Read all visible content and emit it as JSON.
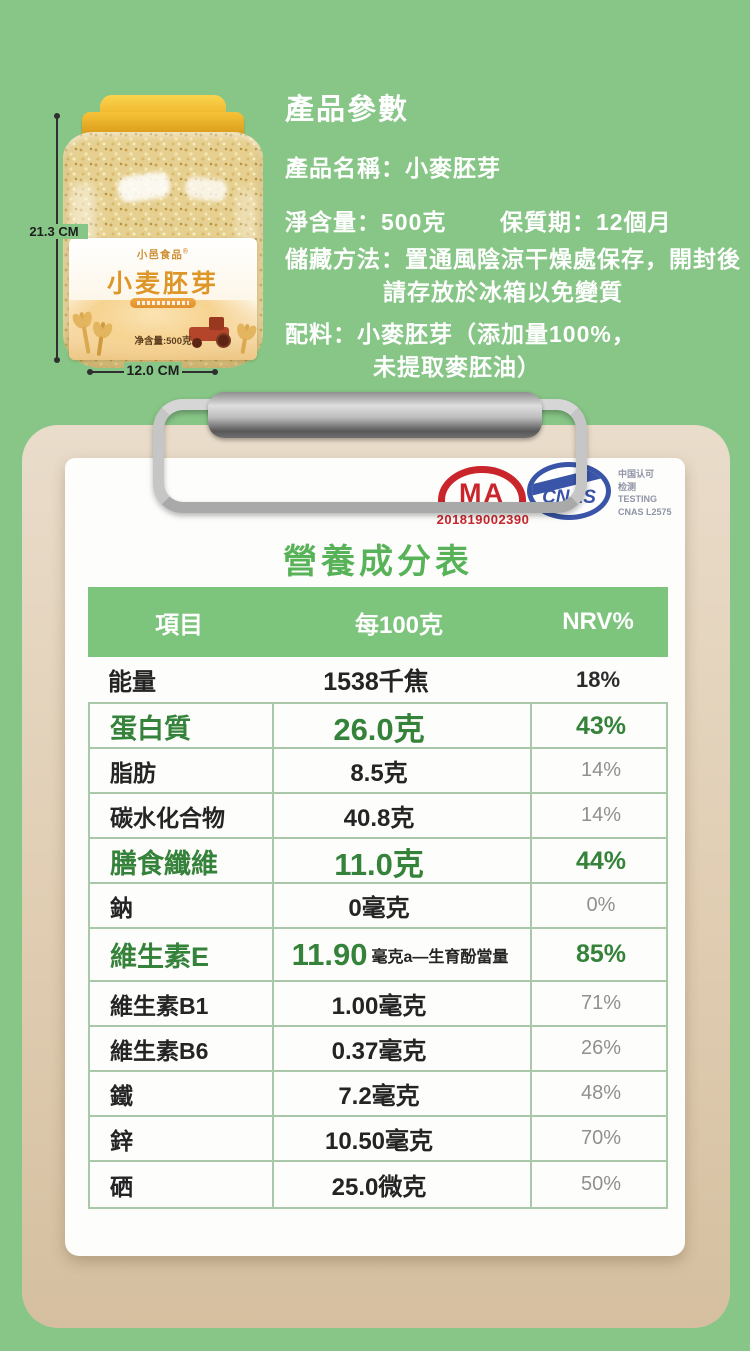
{
  "colors": {
    "background": "#87c687",
    "header_green": "#7dc47d",
    "title_green": "#58b358",
    "highlight_green": "#35823a",
    "cma_red": "#c9252b",
    "cnas_blue": "#3a55a8",
    "clipboard_tan": "#e0cdb2",
    "paper": "#fdfdfb",
    "gold": "#dd9628"
  },
  "params": {
    "title": "產品參數",
    "name": "產品名稱：小麥胚芽",
    "net": "淨含量：500克",
    "shelf": "保質期：12個月",
    "storage1": "儲藏方法：置通風陰涼干燥處保存，開封後",
    "storage2": "請存放於冰箱以免變質",
    "ingredients1": "配料：小麥胚芽（添加量100%，",
    "ingredients2": "未提取麥胚油）"
  },
  "jar": {
    "brand": "小邑食品",
    "brand_reg": "®",
    "name": "小麦胚芽",
    "net_weight": "净含量:500克",
    "height_label": "21.3 CM",
    "width_label": "12.0 CM"
  },
  "certs": {
    "cma_label": "MA",
    "cma_number": "201819002390",
    "cnas_label": "CNAS",
    "cnas_lines": [
      "中国认可",
      "检测",
      "TESTING",
      "CNAS L2575"
    ]
  },
  "nutrition": {
    "title": "營養成分表",
    "headers": [
      "項目",
      "每100克",
      "NRV%"
    ],
    "rows": [
      {
        "name": "能量",
        "value": "1538千焦",
        "nrv": "18%"
      },
      {
        "name": "蛋白質",
        "value": "26.0克",
        "nrv": "43%"
      },
      {
        "name": "脂肪",
        "value": "8.5克",
        "nrv": "14%"
      },
      {
        "name": "碳水化合物",
        "value": "40.8克",
        "nrv": "14%"
      },
      {
        "name": "膳食纖維",
        "value": "11.0克",
        "nrv": "44%"
      },
      {
        "name": "鈉",
        "value": "0毫克",
        "nrv": "0%"
      },
      {
        "name": "維生素E",
        "value": "11.90",
        "unit": "毫克a—生育酚當量",
        "nrv": "85%"
      },
      {
        "name": "維生素B1",
        "value": "1.00毫克",
        "nrv": "71%"
      },
      {
        "name": "維生素B6",
        "value": "0.37毫克",
        "nrv": "26%"
      },
      {
        "name": "鐵",
        "value": "7.2毫克",
        "nrv": "48%"
      },
      {
        "name": "鋅",
        "value": "10.50毫克",
        "nrv": "70%"
      },
      {
        "name": "硒",
        "value": "25.0微克",
        "nrv": "50%"
      }
    ]
  }
}
